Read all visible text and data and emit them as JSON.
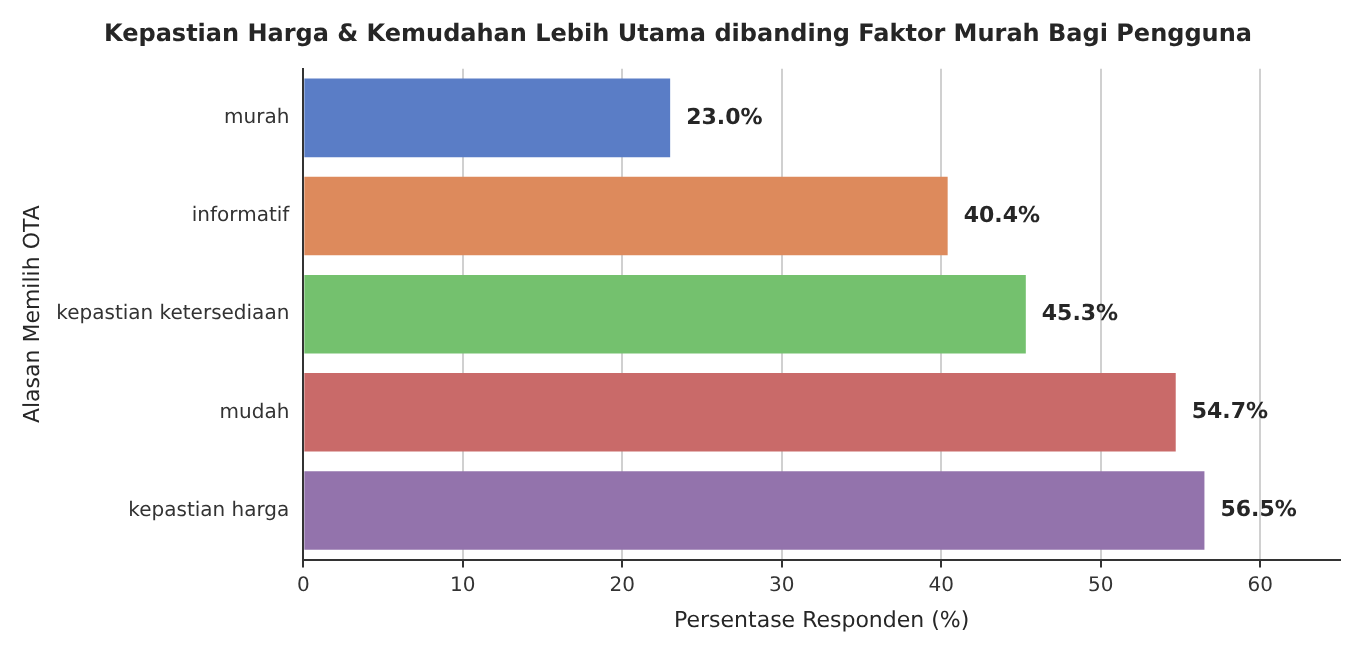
{
  "chart_data": {
    "type": "bar",
    "orientation": "horizontal",
    "title": "Kepastian Harga & Kemudahan Lebih Utama dibanding Faktor Murah Bagi Pengguna",
    "xlabel": "Persentase Responden (%)",
    "ylabel": "Alasan Memilih OTA",
    "categories": [
      "murah",
      "informatif",
      "kepastian ketersediaan",
      "mudah",
      "kepastian harga"
    ],
    "values": [
      23.0,
      40.4,
      45.3,
      54.7,
      56.5
    ],
    "value_labels": [
      "23.0%",
      "40.4%",
      "45.3%",
      "54.7%",
      "56.5%"
    ],
    "colors": [
      "#5a7dc6",
      "#dd8a5c",
      "#74c16e",
      "#c96a69",
      "#9373ac"
    ],
    "xlim": [
      0,
      65
    ],
    "xticks": [
      0,
      10,
      20,
      30,
      40,
      50,
      60
    ],
    "grid": "x"
  }
}
